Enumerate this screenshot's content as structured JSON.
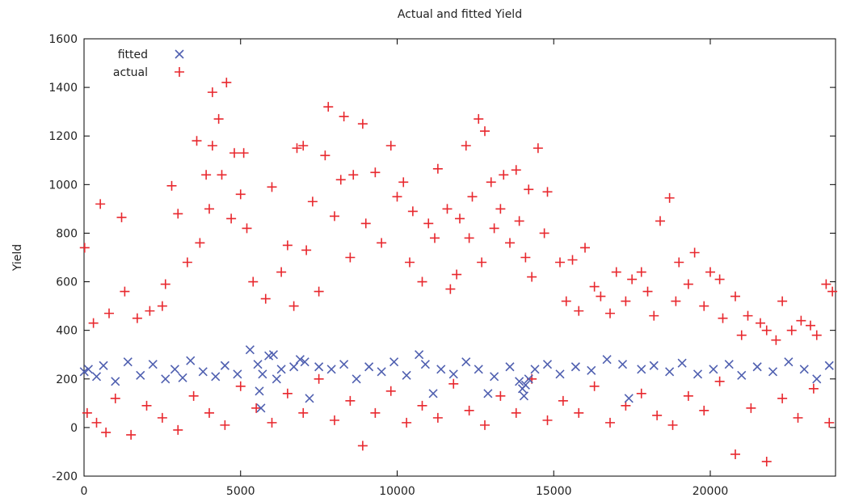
{
  "chart_data": {
    "type": "scatter",
    "title": "Actual and fitted Yield",
    "xlabel": "",
    "ylabel": "Yield",
    "xlim": [
      0,
      24000
    ],
    "ylim": [
      -200,
      1600
    ],
    "xticks": [
      0,
      5000,
      10000,
      15000,
      20000
    ],
    "yticks": [
      -200,
      0,
      200,
      400,
      600,
      800,
      1000,
      1200,
      1400,
      1600
    ],
    "grid": false,
    "legend_position": "top-left",
    "colors": {
      "fitted": "#5060b0",
      "actual": "#e8282e"
    },
    "series": [
      {
        "name": "fitted",
        "marker": "x",
        "points": [
          [
            5,
            230
          ],
          [
            140,
            240
          ],
          [
            400,
            210
          ],
          [
            620,
            255
          ],
          [
            1000,
            190
          ],
          [
            1400,
            270
          ],
          [
            1800,
            215
          ],
          [
            2200,
            260
          ],
          [
            2600,
            200
          ],
          [
            2900,
            240
          ],
          [
            3150,
            205
          ],
          [
            3400,
            275
          ],
          [
            3800,
            230
          ],
          [
            4200,
            210
          ],
          [
            4500,
            255
          ],
          [
            4900,
            220
          ],
          [
            5300,
            320
          ],
          [
            5550,
            260
          ],
          [
            5600,
            150
          ],
          [
            5650,
            80
          ],
          [
            5700,
            220
          ],
          [
            5900,
            295
          ],
          [
            6050,
            300
          ],
          [
            6150,
            200
          ],
          [
            6300,
            240
          ],
          [
            6700,
            250
          ],
          [
            6900,
            280
          ],
          [
            7050,
            270
          ],
          [
            7200,
            120
          ],
          [
            7500,
            250
          ],
          [
            7900,
            240
          ],
          [
            8300,
            260
          ],
          [
            8700,
            200
          ],
          [
            9100,
            250
          ],
          [
            9500,
            230
          ],
          [
            9900,
            270
          ],
          [
            10300,
            215
          ],
          [
            10700,
            300
          ],
          [
            10900,
            260
          ],
          [
            11150,
            140
          ],
          [
            11400,
            240
          ],
          [
            11800,
            220
          ],
          [
            12200,
            270
          ],
          [
            12600,
            240
          ],
          [
            12900,
            140
          ],
          [
            13100,
            210
          ],
          [
            13600,
            250
          ],
          [
            13900,
            190
          ],
          [
            14000,
            160
          ],
          [
            14050,
            130
          ],
          [
            14100,
            175
          ],
          [
            14200,
            200
          ],
          [
            14400,
            240
          ],
          [
            14800,
            260
          ],
          [
            15200,
            220
          ],
          [
            15700,
            250
          ],
          [
            16200,
            235
          ],
          [
            16700,
            280
          ],
          [
            17200,
            260
          ],
          [
            17400,
            120
          ],
          [
            17800,
            240
          ],
          [
            18200,
            255
          ],
          [
            18700,
            230
          ],
          [
            19100,
            265
          ],
          [
            19600,
            220
          ],
          [
            20100,
            240
          ],
          [
            20600,
            260
          ],
          [
            21000,
            215
          ],
          [
            21500,
            250
          ],
          [
            22000,
            230
          ],
          [
            22500,
            270
          ],
          [
            23000,
            240
          ],
          [
            23400,
            200
          ],
          [
            23800,
            255
          ]
        ]
      },
      {
        "name": "actual",
        "marker": "+",
        "points": [
          [
            20,
            740
          ],
          [
            520,
            920
          ],
          [
            1200,
            865
          ],
          [
            2600,
            590
          ],
          [
            2800,
            995
          ],
          [
            3000,
            880
          ],
          [
            3600,
            1180
          ],
          [
            3900,
            1040
          ],
          [
            4100,
            1160
          ],
          [
            4100,
            1380
          ],
          [
            4300,
            1270
          ],
          [
            4550,
            1420
          ],
          [
            4800,
            1130
          ],
          [
            5100,
            1130
          ],
          [
            5200,
            820
          ],
          [
            6000,
            990
          ],
          [
            6500,
            750
          ],
          [
            6800,
            1150
          ],
          [
            7000,
            1160
          ],
          [
            7300,
            930
          ],
          [
            7700,
            1120
          ],
          [
            7800,
            1320
          ],
          [
            8200,
            1020
          ],
          [
            8300,
            1280
          ],
          [
            8600,
            1040
          ],
          [
            8900,
            1250
          ],
          [
            9300,
            1050
          ],
          [
            9800,
            1160
          ],
          [
            10000,
            950
          ],
          [
            10200,
            1010
          ],
          [
            10500,
            890
          ],
          [
            11000,
            840
          ],
          [
            11300,
            1065
          ],
          [
            11600,
            900
          ],
          [
            11900,
            630
          ],
          [
            12200,
            1160
          ],
          [
            12400,
            950
          ],
          [
            12600,
            1270
          ],
          [
            12800,
            1220
          ],
          [
            13000,
            1010
          ],
          [
            13400,
            1040
          ],
          [
            13800,
            1060
          ],
          [
            14200,
            980
          ],
          [
            14500,
            1150
          ],
          [
            14800,
            970
          ],
          [
            15200,
            680
          ],
          [
            15600,
            690
          ],
          [
            16000,
            740
          ],
          [
            16500,
            540
          ],
          [
            17000,
            640
          ],
          [
            17500,
            610
          ],
          [
            18000,
            560
          ],
          [
            18400,
            850
          ],
          [
            18700,
            945
          ],
          [
            19000,
            680
          ],
          [
            19500,
            720
          ],
          [
            20000,
            640
          ],
          [
            20300,
            610
          ],
          [
            20800,
            540
          ],
          [
            21200,
            460
          ],
          [
            21800,
            400
          ],
          [
            22300,
            520
          ],
          [
            22900,
            440
          ],
          [
            23400,
            380
          ],
          [
            23700,
            590
          ],
          [
            23900,
            560
          ],
          [
            300,
            430
          ],
          [
            800,
            470
          ],
          [
            1300,
            560
          ],
          [
            1700,
            450
          ],
          [
            2100,
            480
          ],
          [
            2500,
            500
          ],
          [
            3300,
            680
          ],
          [
            3700,
            760
          ],
          [
            4000,
            900
          ],
          [
            4400,
            1040
          ],
          [
            4700,
            860
          ],
          [
            5000,
            960
          ],
          [
            5400,
            600
          ],
          [
            5800,
            530
          ],
          [
            6300,
            640
          ],
          [
            6700,
            500
          ],
          [
            7100,
            730
          ],
          [
            7500,
            560
          ],
          [
            8000,
            870
          ],
          [
            8500,
            700
          ],
          [
            9000,
            840
          ],
          [
            9500,
            760
          ],
          [
            10400,
            680
          ],
          [
            10800,
            600
          ],
          [
            11200,
            780
          ],
          [
            11700,
            570
          ],
          [
            12000,
            860
          ],
          [
            12300,
            780
          ],
          [
            12700,
            680
          ],
          [
            13100,
            820
          ],
          [
            13300,
            900
          ],
          [
            13600,
            760
          ],
          [
            13900,
            850
          ],
          [
            14100,
            700
          ],
          [
            14300,
            620
          ],
          [
            14700,
            800
          ],
          [
            15400,
            520
          ],
          [
            15800,
            480
          ],
          [
            16300,
            580
          ],
          [
            16800,
            470
          ],
          [
            17300,
            520
          ],
          [
            17800,
            640
          ],
          [
            18200,
            460
          ],
          [
            18900,
            520
          ],
          [
            19300,
            590
          ],
          [
            19800,
            500
          ],
          [
            20400,
            450
          ],
          [
            21000,
            380
          ],
          [
            21600,
            430
          ],
          [
            22100,
            360
          ],
          [
            22600,
            400
          ],
          [
            23200,
            420
          ],
          [
            100,
            60
          ],
          [
            400,
            20
          ],
          [
            700,
            -20
          ],
          [
            1000,
            120
          ],
          [
            1500,
            -30
          ],
          [
            2000,
            90
          ],
          [
            2500,
            40
          ],
          [
            3000,
            -10
          ],
          [
            3500,
            130
          ],
          [
            4000,
            60
          ],
          [
            4500,
            10
          ],
          [
            5000,
            170
          ],
          [
            5500,
            80
          ],
          [
            6000,
            20
          ],
          [
            6500,
            140
          ],
          [
            7000,
            60
          ],
          [
            7500,
            200
          ],
          [
            8000,
            30
          ],
          [
            8500,
            110
          ],
          [
            8900,
            -75
          ],
          [
            9300,
            60
          ],
          [
            9800,
            150
          ],
          [
            10300,
            20
          ],
          [
            10800,
            90
          ],
          [
            11300,
            40
          ],
          [
            11800,
            180
          ],
          [
            12300,
            70
          ],
          [
            12800,
            10
          ],
          [
            13300,
            130
          ],
          [
            13800,
            60
          ],
          [
            14300,
            200
          ],
          [
            14800,
            30
          ],
          [
            15300,
            110
          ],
          [
            15800,
            60
          ],
          [
            16300,
            170
          ],
          [
            16800,
            20
          ],
          [
            17300,
            90
          ],
          [
            17800,
            140
          ],
          [
            18300,
            50
          ],
          [
            18800,
            10
          ],
          [
            19300,
            130
          ],
          [
            19800,
            70
          ],
          [
            20300,
            190
          ],
          [
            20800,
            -110
          ],
          [
            21300,
            80
          ],
          [
            21800,
            -140
          ],
          [
            22300,
            120
          ],
          [
            22800,
            40
          ],
          [
            23300,
            160
          ],
          [
            23800,
            20
          ]
        ]
      }
    ]
  }
}
